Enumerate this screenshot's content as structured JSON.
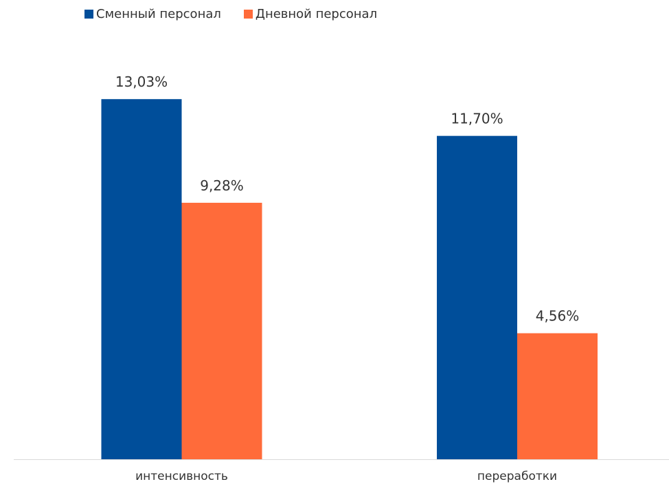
{
  "colors": {
    "series_1": "#004E9A",
    "series_2": "#FF6B3A",
    "axis": "#d9d9d9",
    "text": "#333333"
  },
  "chart_data": {
    "type": "bar",
    "title": "",
    "xlabel": "",
    "ylabel": "",
    "categories": [
      "интенсивность",
      "переработки"
    ],
    "series": [
      {
        "name": "Сменный персонал",
        "values": [
          13.03,
          11.7
        ],
        "labels": [
          "13,03%",
          "11,70%"
        ]
      },
      {
        "name": "Дневной персонал",
        "values": [
          9.28,
          4.56
        ],
        "labels": [
          "9,28%",
          "4,56%"
        ]
      }
    ],
    "ylim": [
      0,
      14
    ],
    "grid": false,
    "legend": "top-left"
  }
}
